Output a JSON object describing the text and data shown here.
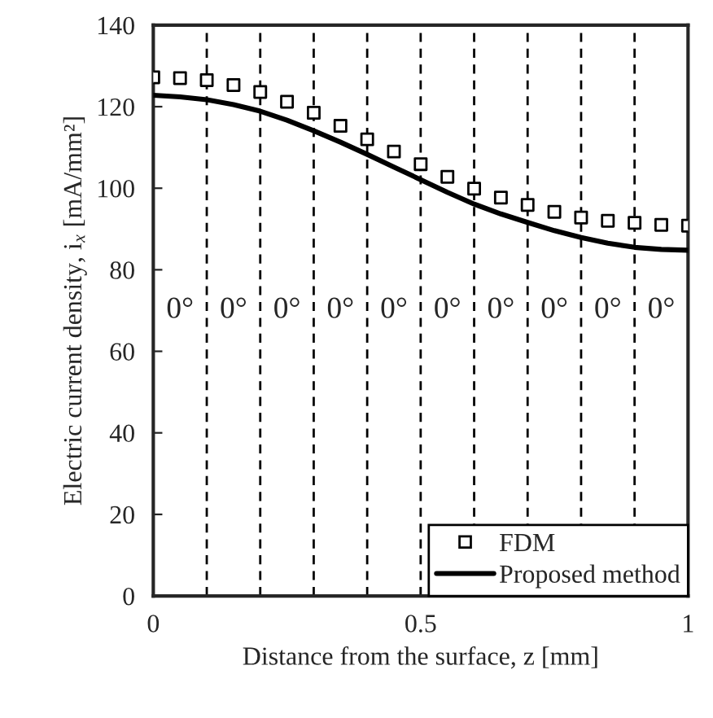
{
  "chart_data": {
    "type": "line",
    "xlabel": "Distance from the surface, z [mm]",
    "ylabel": "Electric current density, i$_{x}$ [mA/mm²]",
    "xlim": [
      0,
      1
    ],
    "xticks": [
      0,
      0.5,
      1
    ],
    "ylim": [
      0,
      140
    ],
    "yticks": [
      0,
      20,
      40,
      60,
      80,
      100,
      120,
      140
    ],
    "grid": false,
    "legend": "bottom right",
    "series": [
      {
        "name": "FDM",
        "type": "scatter",
        "marker": "square",
        "color": "#000000",
        "x": [
          0,
          0.05,
          0.1,
          0.15,
          0.2,
          0.25,
          0.3,
          0.35,
          0.4,
          0.45,
          0.5,
          0.55,
          0.6,
          0.65,
          0.7,
          0.75,
          0.8,
          0.85,
          0.9,
          0.95,
          1
        ],
        "values": [
          127.2,
          127,
          126.5,
          125.3,
          123.6,
          121.2,
          118.5,
          115.3,
          112,
          109,
          105.9,
          102.8,
          99.9,
          97.7,
          95.9,
          94.2,
          92.8,
          92,
          91.5,
          91,
          90.8
        ]
      },
      {
        "name": "Proposed method",
        "line_style": "solid",
        "color": "#000000",
        "x": [
          0,
          0.05,
          0.1,
          0.15,
          0.2,
          0.25,
          0.3,
          0.35,
          0.4,
          0.45,
          0.5,
          0.55,
          0.6,
          0.65,
          0.7,
          0.75,
          0.8,
          0.85,
          0.9,
          0.95,
          1
        ],
        "values": [
          122.8,
          122.4,
          121.7,
          120.5,
          118.9,
          116.7,
          114.1,
          111.3,
          108.3,
          105.2,
          102.1,
          99,
          96.1,
          93.7,
          91.6,
          89.6,
          87.9,
          86.5,
          85.5,
          85,
          84.8
        ]
      }
    ],
    "ref_lines": [
      {
        "axis": "x",
        "value": 0.1,
        "line_style": "dashed"
      },
      {
        "axis": "x",
        "value": 0.2,
        "line_style": "dashed"
      },
      {
        "axis": "x",
        "value": 0.3,
        "line_style": "dashed"
      },
      {
        "axis": "x",
        "value": 0.4,
        "line_style": "dashed"
      },
      {
        "axis": "x",
        "value": 0.5,
        "line_style": "dashed"
      },
      {
        "axis": "x",
        "value": 0.6,
        "line_style": "dashed"
      },
      {
        "axis": "x",
        "value": 0.7,
        "line_style": "dashed"
      },
      {
        "axis": "x",
        "value": 0.8,
        "line_style": "dashed"
      },
      {
        "axis": "x",
        "value": 0.9,
        "line_style": "dashed"
      }
    ],
    "annotations": [
      "0°",
      "0°",
      "0°",
      "0°",
      "0°",
      "0°",
      "0°",
      "0°",
      "0°",
      "0°"
    ]
  }
}
